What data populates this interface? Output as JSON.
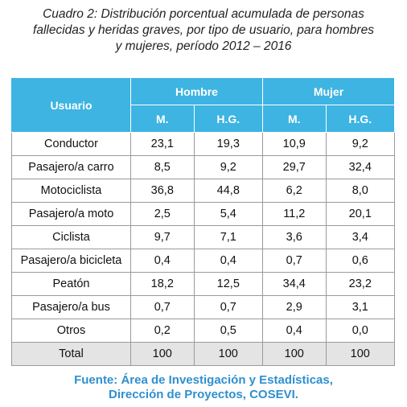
{
  "header": {
    "title_lines": [
      "Cuadro 2: Distribución porcentual acumulada de personas",
      "fallecidas y heridas graves, por tipo de usuario, para hombres",
      "y mujeres, período 2012 – 2016"
    ]
  },
  "table": {
    "header": {
      "usuario": "Usuario",
      "groups": [
        "Hombre",
        "Mujer"
      ],
      "subcolumns": [
        "M.",
        "H.G.",
        "M.",
        "H.G."
      ]
    },
    "rows": [
      [
        "Conductor",
        "23,1",
        "19,3",
        "10,9",
        "9,2"
      ],
      [
        "Pasajero/a carro",
        "8,5",
        "9,2",
        "29,7",
        "32,4"
      ],
      [
        "Motociclista",
        "36,8",
        "44,8",
        "6,2",
        "8,0"
      ],
      [
        "Pasajero/a moto",
        "2,5",
        "5,4",
        "11,2",
        "20,1"
      ],
      [
        "Ciclista",
        "9,7",
        "7,1",
        "3,6",
        "3,4"
      ],
      [
        "Pasajero/a bicicleta",
        "0,4",
        "0,4",
        "0,7",
        "0,6"
      ],
      [
        "Peatón",
        "18,2",
        "12,5",
        "34,4",
        "23,2"
      ],
      [
        "Pasajero/a bus",
        "0,7",
        "0,7",
        "2,9",
        "3,1"
      ],
      [
        "Otros",
        "0,2",
        "0,5",
        "0,4",
        "0,0"
      ]
    ],
    "total": [
      "Total",
      "100",
      "100",
      "100",
      "100"
    ]
  },
  "source_lines": [
    "Fuente: Área de Investigación y Estadísticas,",
    "Dirección de Proyectos, COSEVI."
  ]
}
